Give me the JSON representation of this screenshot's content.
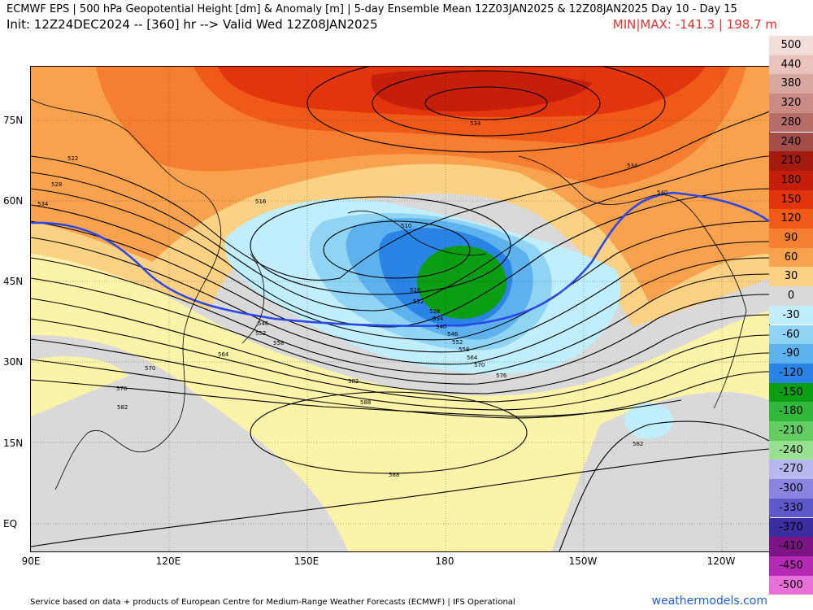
{
  "header": {
    "title_line1": "ECMWF EPS | 500 hPa Geopotential Height [dm] & Anomaly [m] | 5-day Ensemble Mean 12Z03JAN2025 & 12Z08JAN2025   Day 10 - Day 15",
    "title_line2": "Init: 12Z24DEC2024 -- [360] hr --> Valid Wed 12Z08JAN2025",
    "minmax": "MIN|MAX: -141.3 | 198.7 m"
  },
  "axes": {
    "lat_labels": [
      "75N",
      "60N",
      "45N",
      "30N",
      "15N",
      "EQ"
    ],
    "lon_labels": [
      "90E",
      "120E",
      "150E",
      "180",
      "150W",
      "120W"
    ]
  },
  "colorbar": {
    "levels": [
      "500",
      "440",
      "380",
      "320",
      "280",
      "240",
      "210",
      "180",
      "150",
      "120",
      "90",
      "60",
      "30",
      "0",
      "-30",
      "-60",
      "-90",
      "-120",
      "-150",
      "-180",
      "-210",
      "-240",
      "-270",
      "-300",
      "-330",
      "-370",
      "-410",
      "-450",
      "-500"
    ],
    "colors": [
      "#f3ddd8",
      "#e9c4bd",
      "#d8a7a0",
      "#c98b84",
      "#b86e68",
      "#a24d47",
      "#a51a0e",
      "#c51f0b",
      "#e2350e",
      "#ef5a19",
      "#f57e30",
      "#f8a24e",
      "#fbd183",
      "#d9d9d9",
      "#c1eefc",
      "#90d4f5",
      "#5db2ee",
      "#2a84e6",
      "#0b9e15",
      "#31b73b",
      "#63cc63",
      "#98e092",
      "#b6b8ef",
      "#8a86e0",
      "#5e58cd",
      "#3b2c9f",
      "#7c1486",
      "#b52ab4",
      "#e96fd8"
    ]
  },
  "map": {
    "contour_labels": [
      "534",
      "534",
      "540",
      "522",
      "528",
      "534",
      "516",
      "510",
      "516",
      "522",
      "528",
      "534",
      "540",
      "546",
      "552",
      "558",
      "564",
      "570",
      "576",
      "546",
      "552",
      "558",
      "564",
      "570",
      "576",
      "582",
      "588",
      "588",
      "582",
      "582"
    ]
  },
  "footer": {
    "credit": "Service based on data + products of European Centre for Medium-Range Weather Forecasts (ECMWF) | IFS Operational",
    "brand": "weathermodels.com"
  }
}
